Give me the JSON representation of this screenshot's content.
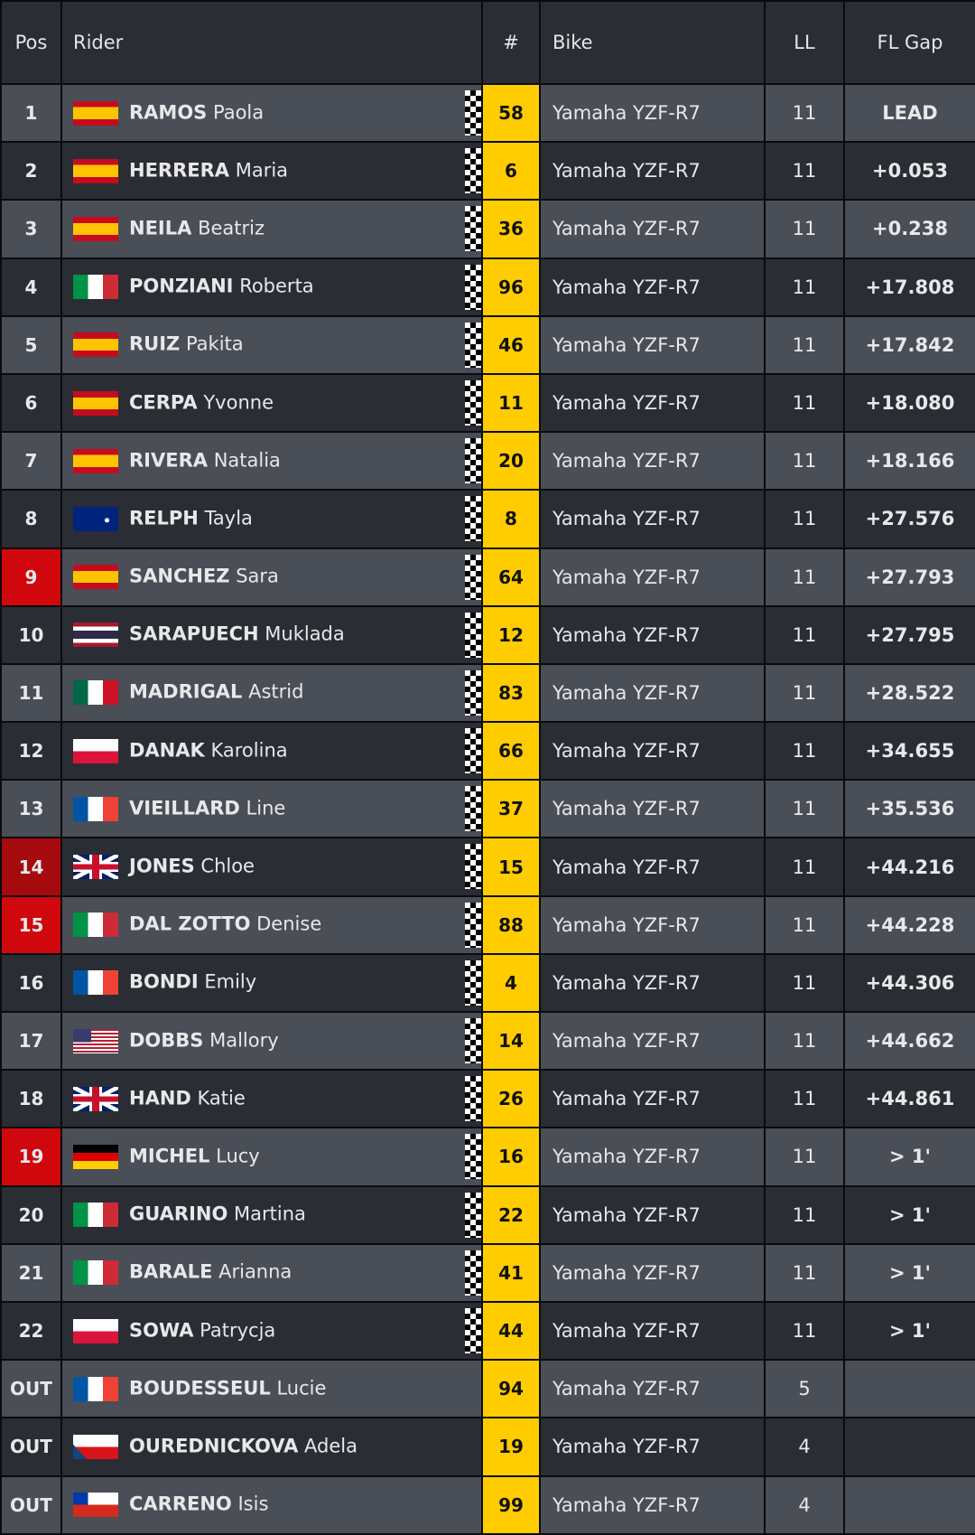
{
  "headers": {
    "pos": "Pos",
    "rider": "Rider",
    "num": "#",
    "bike": "Bike",
    "ll": "LL",
    "gap": "FL Gap"
  },
  "colors": {
    "number_bg": "#ffcc00",
    "highlight_red": "#d0070d",
    "row_light": "#4a4e56",
    "row_dark": "#2a2d33"
  },
  "rows": [
    {
      "pos": "1",
      "flag": "spain",
      "surname": "RAMOS",
      "first": "Paola",
      "num": "58",
      "bike": "Yamaha YZF-R7",
      "ll": "11",
      "gap": "LEAD",
      "finished": true
    },
    {
      "pos": "2",
      "flag": "spain",
      "surname": "HERRERA",
      "first": "Maria",
      "num": "6",
      "bike": "Yamaha YZF-R7",
      "ll": "11",
      "gap": "+0.053",
      "finished": true
    },
    {
      "pos": "3",
      "flag": "spain",
      "surname": "NEILA",
      "first": "Beatriz",
      "num": "36",
      "bike": "Yamaha YZF-R7",
      "ll": "11",
      "gap": "+0.238",
      "finished": true
    },
    {
      "pos": "4",
      "flag": "italy",
      "surname": "PONZIANI",
      "first": "Roberta",
      "num": "96",
      "bike": "Yamaha YZF-R7",
      "ll": "11",
      "gap": "+17.808",
      "finished": true
    },
    {
      "pos": "5",
      "flag": "spain",
      "surname": "RUIZ",
      "first": "Pakita",
      "num": "46",
      "bike": "Yamaha YZF-R7",
      "ll": "11",
      "gap": "+17.842",
      "finished": true
    },
    {
      "pos": "6",
      "flag": "spain",
      "surname": "CERPA",
      "first": "Yvonne",
      "num": "11",
      "bike": "Yamaha YZF-R7",
      "ll": "11",
      "gap": "+18.080",
      "finished": true
    },
    {
      "pos": "7",
      "flag": "spain",
      "surname": "RIVERA",
      "first": "Natalia",
      "num": "20",
      "bike": "Yamaha YZF-R7",
      "ll": "11",
      "gap": "+18.166",
      "finished": true
    },
    {
      "pos": "8",
      "flag": "australia",
      "surname": "RELPH",
      "first": "Tayla",
      "num": "8",
      "bike": "Yamaha YZF-R7",
      "ll": "11",
      "gap": "+27.576",
      "finished": true
    },
    {
      "pos": "9",
      "flag": "spain",
      "surname": "SANCHEZ",
      "first": "Sara",
      "num": "64",
      "bike": "Yamaha YZF-R7",
      "ll": "11",
      "gap": "+27.793",
      "finished": true,
      "highlight": "red"
    },
    {
      "pos": "10",
      "flag": "thailand",
      "surname": "SARAPUECH",
      "first": "Muklada",
      "num": "12",
      "bike": "Yamaha YZF-R7",
      "ll": "11",
      "gap": "+27.795",
      "finished": true
    },
    {
      "pos": "11",
      "flag": "mexico",
      "surname": "MADRIGAL",
      "first": "Astrid",
      "num": "83",
      "bike": "Yamaha YZF-R7",
      "ll": "11",
      "gap": "+28.522",
      "finished": true
    },
    {
      "pos": "12",
      "flag": "poland",
      "surname": "DANAK",
      "first": "Karolina",
      "num": "66",
      "bike": "Yamaha YZF-R7",
      "ll": "11",
      "gap": "+34.655",
      "finished": true
    },
    {
      "pos": "13",
      "flag": "france",
      "surname": "VIEILLARD",
      "first": "Line",
      "num": "37",
      "bike": "Yamaha YZF-R7",
      "ll": "11",
      "gap": "+35.536",
      "finished": true
    },
    {
      "pos": "14",
      "flag": "uk",
      "surname": "JONES",
      "first": "Chloe",
      "num": "15",
      "bike": "Yamaha YZF-R7",
      "ll": "11",
      "gap": "+44.216",
      "finished": true,
      "highlight": "dark"
    },
    {
      "pos": "15",
      "flag": "italy",
      "surname": "DAL ZOTTO",
      "first": "Denise",
      "num": "88",
      "bike": "Yamaha YZF-R7",
      "ll": "11",
      "gap": "+44.228",
      "finished": true,
      "highlight": "red"
    },
    {
      "pos": "16",
      "flag": "france",
      "surname": "BONDI",
      "first": "Emily",
      "num": "4",
      "bike": "Yamaha YZF-R7",
      "ll": "11",
      "gap": "+44.306",
      "finished": true
    },
    {
      "pos": "17",
      "flag": "usa",
      "surname": "DOBBS",
      "first": "Mallory",
      "num": "14",
      "bike": "Yamaha YZF-R7",
      "ll": "11",
      "gap": "+44.662",
      "finished": true
    },
    {
      "pos": "18",
      "flag": "uk",
      "surname": "HAND",
      "first": "Katie",
      "num": "26",
      "bike": "Yamaha YZF-R7",
      "ll": "11",
      "gap": "+44.861",
      "finished": true
    },
    {
      "pos": "19",
      "flag": "germany",
      "surname": "MICHEL",
      "first": "Lucy",
      "num": "16",
      "bike": "Yamaha YZF-R7",
      "ll": "11",
      "gap": "> 1'",
      "finished": true,
      "highlight": "red"
    },
    {
      "pos": "20",
      "flag": "italy",
      "surname": "GUARINO",
      "first": "Martina",
      "num": "22",
      "bike": "Yamaha YZF-R7",
      "ll": "11",
      "gap": "> 1'",
      "finished": true
    },
    {
      "pos": "21",
      "flag": "italy",
      "surname": "BARALE",
      "first": "Arianna",
      "num": "41",
      "bike": "Yamaha YZF-R7",
      "ll": "11",
      "gap": "> 1'",
      "finished": true
    },
    {
      "pos": "22",
      "flag": "poland",
      "surname": "SOWA",
      "first": "Patrycja",
      "num": "44",
      "bike": "Yamaha YZF-R7",
      "ll": "11",
      "gap": "> 1'",
      "finished": true
    },
    {
      "pos": "OUT",
      "flag": "france",
      "surname": "BOUDESSEUL",
      "first": "Lucie",
      "num": "94",
      "bike": "Yamaha YZF-R7",
      "ll": "5",
      "gap": "",
      "finished": false
    },
    {
      "pos": "OUT",
      "flag": "czech",
      "surname": "OUREDNICKOVA",
      "first": "Adela",
      "num": "19",
      "bike": "Yamaha YZF-R7",
      "ll": "4",
      "gap": "",
      "finished": false
    },
    {
      "pos": "OUT",
      "flag": "chile",
      "surname": "CARRENO",
      "first": "Isis",
      "num": "99",
      "bike": "Yamaha YZF-R7",
      "ll": "4",
      "gap": "",
      "finished": false
    }
  ]
}
